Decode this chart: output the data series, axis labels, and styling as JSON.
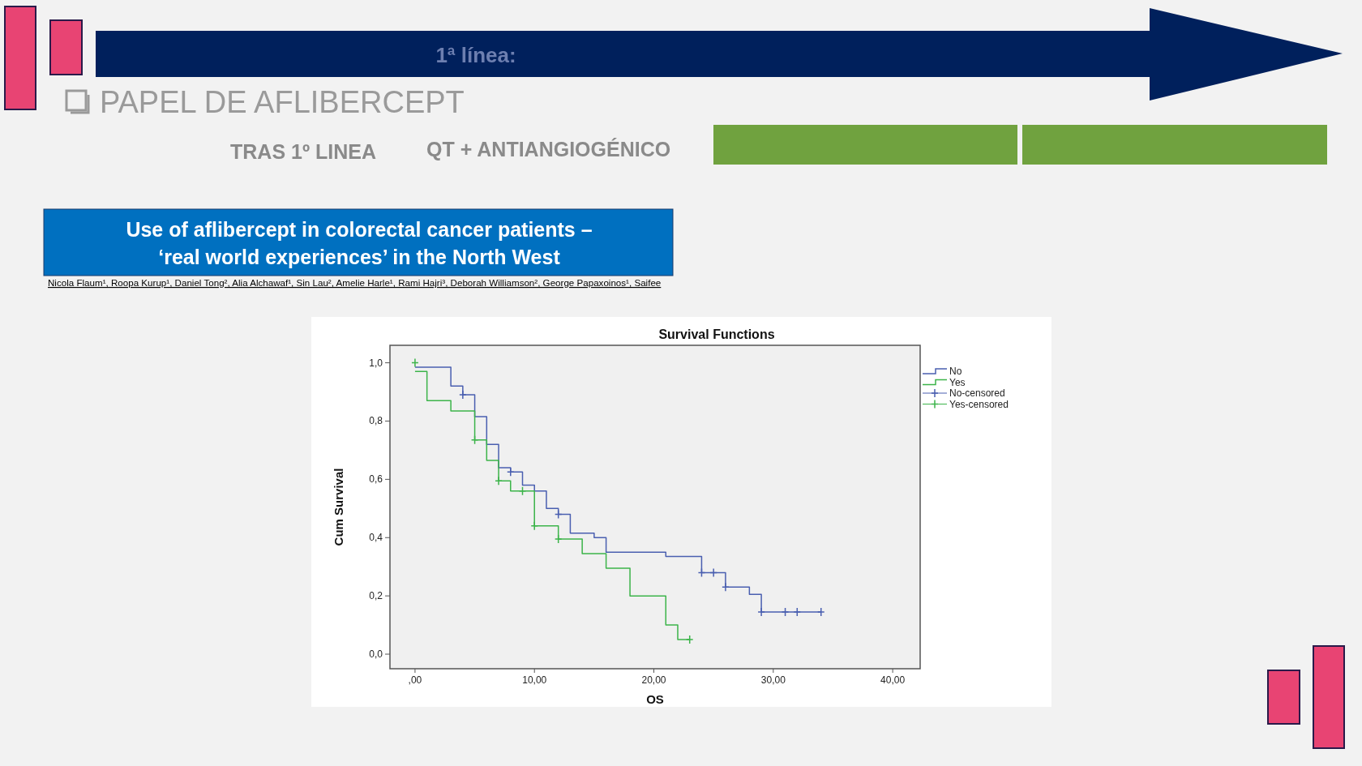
{
  "chart_data": {
    "type": "step",
    "title": "Survival Functions",
    "xlabel": "OS",
    "ylabel": "Cum Survival",
    "annotations": [
      "1ª línea:",
      "PAPEL DE AFLIBERCEPT",
      "TRAS 1º LINEA",
      "QT + ANTIANGIOGÉNICO",
      "Use of aflibercept in colorectal cancer patients –",
      "‘real world experiences’ in the North West",
      "Nicola Flaum¹, Roopa Kurup¹,  Daniel Tong², Alia Alchawaf¹, Sin Lau², Amelie Harle¹, Rami Hajri³, Deborah Williamson², George Papaxoinos¹, Saifee"
    ],
    "xlim": [
      -2.1,
      42.3
    ],
    "ylim": [
      -0.05,
      1.06
    ],
    "xticks": [
      {
        "value": 0,
        "label": ",00"
      },
      {
        "value": 10,
        "label": "10,00"
      },
      {
        "value": 20,
        "label": "20,00"
      },
      {
        "value": 30,
        "label": "30,00"
      },
      {
        "value": 40,
        "label": "40,00"
      }
    ],
    "yticks": [
      {
        "value": 0,
        "label": "0,0"
      },
      {
        "value": 0.2,
        "label": "0,2"
      },
      {
        "value": 0.4,
        "label": "0,4"
      },
      {
        "value": 0.6,
        "label": "0,6"
      },
      {
        "value": 0.8,
        "label": "0,8"
      },
      {
        "value": 1,
        "label": "1,0"
      }
    ],
    "grid": false,
    "legend": "right",
    "line_style": "solid",
    "series": [
      {
        "name": "No",
        "color": "#4a5fb0",
        "marker": "none",
        "x": [
          0,
          3,
          4,
          5,
          6,
          7,
          8,
          9,
          10,
          11,
          12,
          13,
          15,
          16,
          21,
          24,
          26,
          28,
          29,
          34
        ],
        "values": [
          0.985,
          0.92,
          0.89,
          0.815,
          0.72,
          0.64,
          0.625,
          0.58,
          0.56,
          0.5,
          0.48,
          0.415,
          0.4,
          0.35,
          0.335,
          0.28,
          0.23,
          0.205,
          0.145,
          0.145
        ]
      },
      {
        "name": "Yes",
        "color": "#3cb44a",
        "marker": "none",
        "x": [
          0,
          1,
          3,
          5,
          6,
          7,
          8,
          10,
          12,
          14,
          16,
          18,
          21,
          22,
          23
        ],
        "values": [
          0.97,
          0.87,
          0.835,
          0.735,
          0.665,
          0.595,
          0.56,
          0.44,
          0.395,
          0.345,
          0.295,
          0.2,
          0.1,
          0.05,
          0.05
        ]
      },
      {
        "name": "No-censored",
        "color": "#4a5fb0",
        "type": "scatter",
        "marker": "cross",
        "x": [
          4,
          8,
          12,
          24,
          25,
          26,
          29,
          31,
          32,
          34
        ],
        "values": [
          0.89,
          0.625,
          0.48,
          0.28,
          0.28,
          0.23,
          0.145,
          0.145,
          0.145,
          0.145
        ]
      },
      {
        "name": "Yes-censored",
        "color": "#3cb44a",
        "type": "scatter",
        "marker": "cross",
        "x": [
          0,
          5,
          7,
          9,
          10,
          12,
          23
        ],
        "values": [
          1.0,
          0.735,
          0.595,
          0.56,
          0.44,
          0.395,
          0.05
        ]
      }
    ]
  }
}
